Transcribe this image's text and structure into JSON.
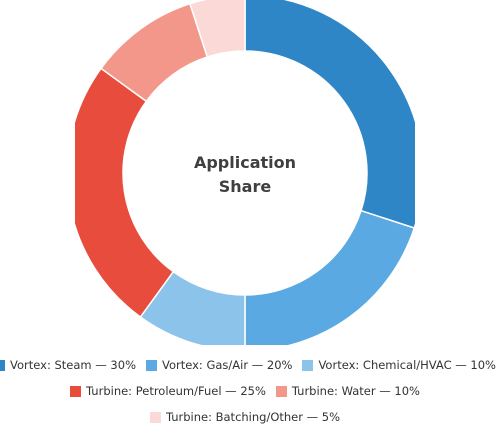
{
  "chart_data": {
    "type": "donut",
    "title": "Application\nShare",
    "title_lines": [
      "Application",
      "Share"
    ],
    "slices": [
      {
        "name": "Vortex: Steam",
        "value": 30,
        "color": "#2e86c6"
      },
      {
        "name": "Vortex: Gas/Air",
        "value": 20,
        "color": "#5aa9e3"
      },
      {
        "name": "Vortex: Chemical/HVAC",
        "value": 10,
        "color": "#8cc3ea"
      },
      {
        "name": "Turbine: Petroleum/Fuel",
        "value": 25,
        "color": "#e84c3d"
      },
      {
        "name": "Turbine: Water",
        "value": 10,
        "color": "#f4978b"
      },
      {
        "name": "Turbine: Batching/Other",
        "value": 5,
        "color": "#fbd9d6"
      }
    ],
    "legend_labels": [
      "Vortex: Steam — 30%",
      "Vortex: Gas/Air — 20%",
      "Vortex: Chemical/HVAC — 10%",
      "Turbine: Petroleum/Fuel — 25%",
      "Turbine: Water — 10%",
      "Turbine: Batching/Other — 5%"
    ],
    "legend_position": "bottom"
  }
}
